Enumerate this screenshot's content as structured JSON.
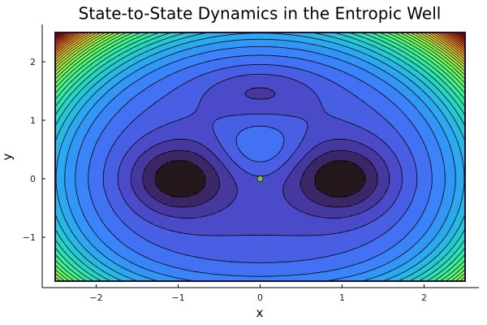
{
  "chart_data": {
    "type": "contour",
    "title": "State-to-State Dynamics in the Entropic Well",
    "xlabel": "x",
    "ylabel": "y",
    "xlim": [
      -2.5,
      2.5
    ],
    "ylim": [
      -1.75,
      2.5
    ],
    "x_ticks": [
      -2,
      -1,
      0,
      1,
      2
    ],
    "y_ticks": [
      -1,
      0,
      1,
      2
    ],
    "x_tick_labels": [
      "−2",
      "−1",
      "0",
      "1",
      "2"
    ],
    "y_tick_labels": [
      "−1",
      "0",
      "1",
      "2"
    ],
    "colormap": "turbo",
    "contour_line_color": "#000000",
    "grid": true,
    "legend": false,
    "wells": [
      {
        "x": -1.0,
        "y": 0.0
      },
      {
        "x": 1.0,
        "y": 0.0
      }
    ],
    "saddle_peak": {
      "x": 0.0,
      "y": 0.55
    },
    "upper_basin": {
      "x": 0.0,
      "y": 1.5
    },
    "marker": {
      "x": 0.0,
      "y": 0.0,
      "color": "#7dc242"
    }
  }
}
